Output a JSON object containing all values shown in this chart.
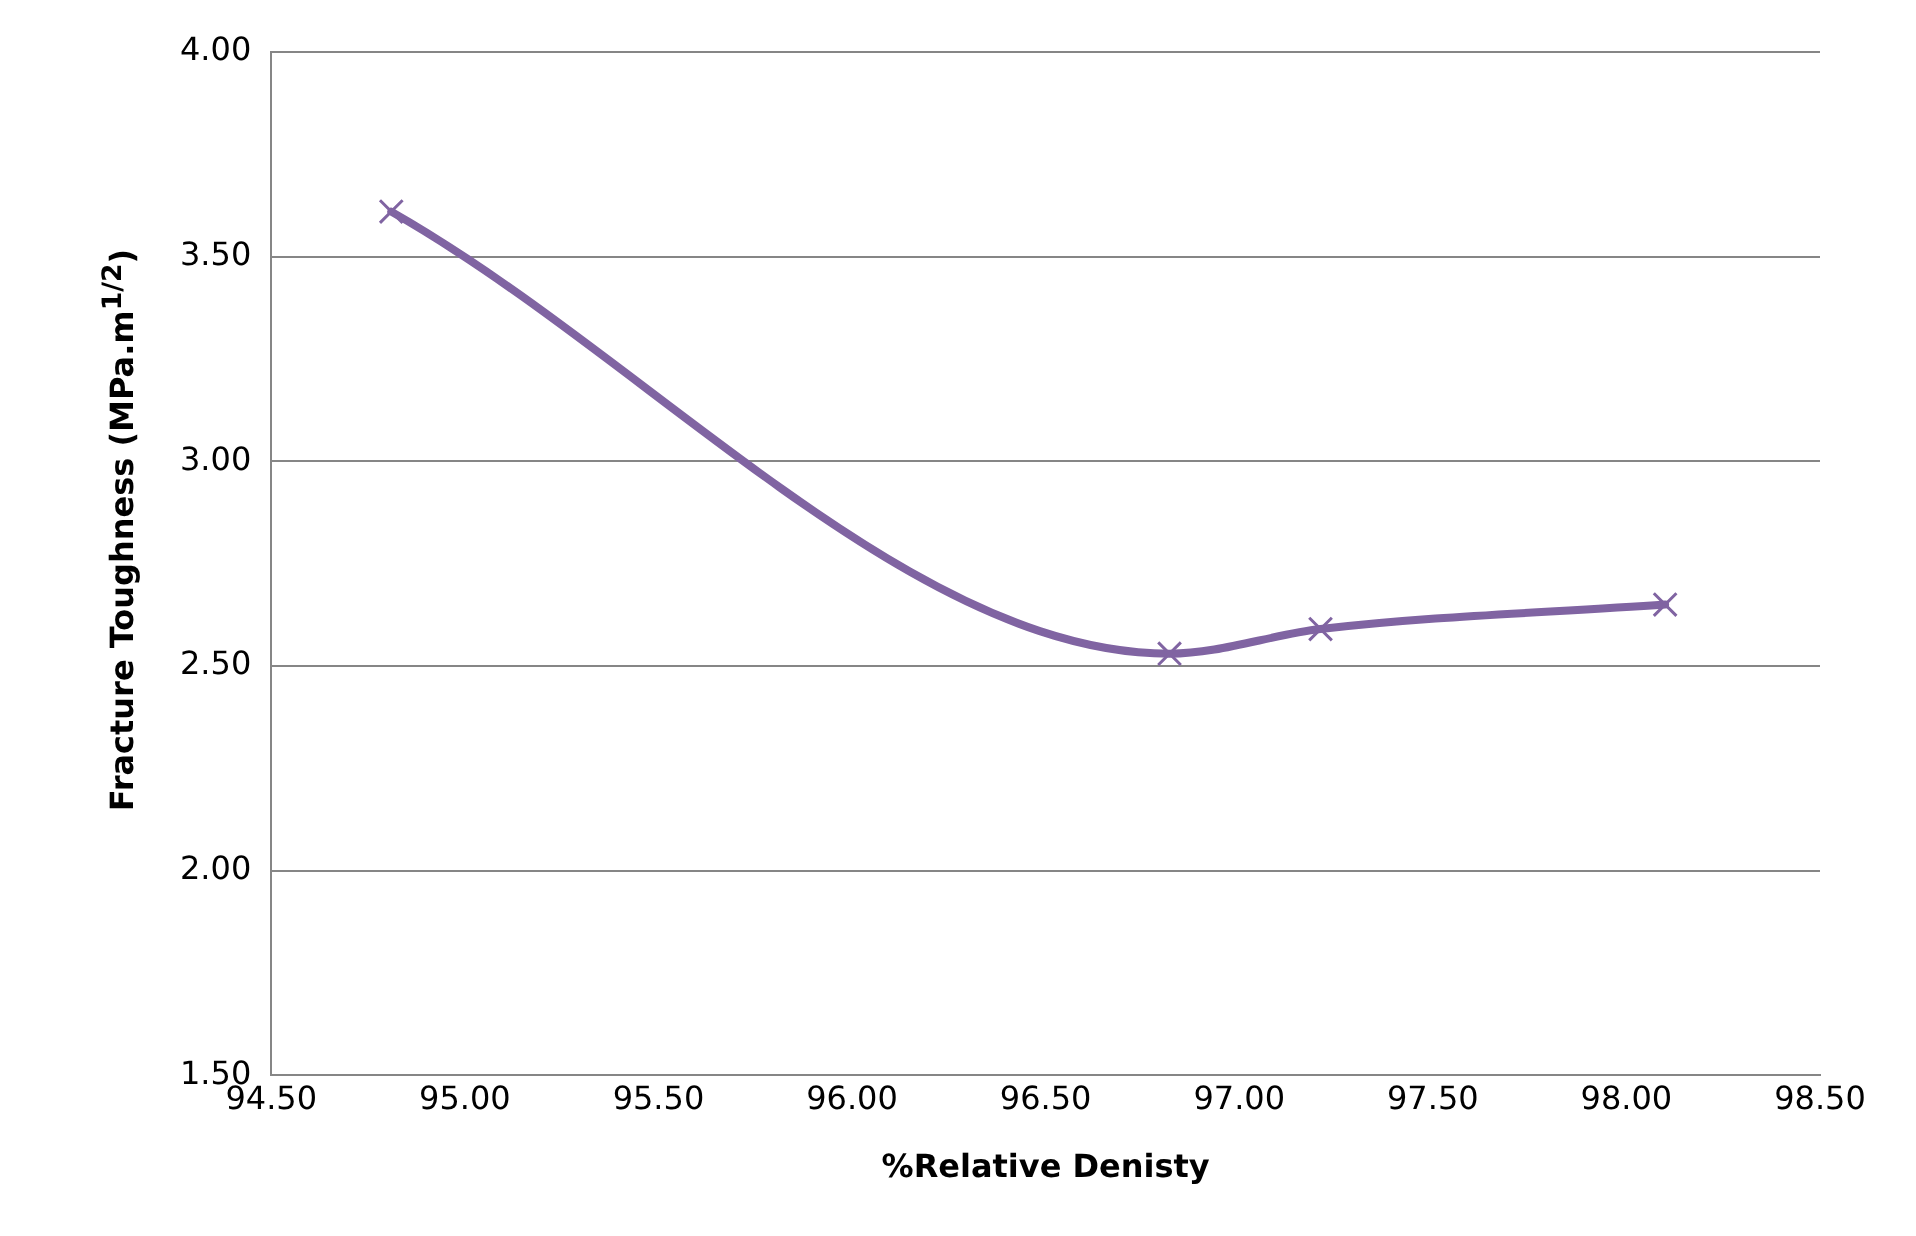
{
  "chart_data": {
    "type": "line",
    "xlabel": "%Relative Denisty",
    "ylabel": "Fracture Toughness (MPa.m$^{1/2}$)",
    "x": [
      94.81,
      96.82,
      97.21,
      98.1
    ],
    "series": [
      {
        "color": "#8064a2",
        "values": [
          3.61,
          2.53,
          2.59,
          2.65
        ]
      }
    ],
    "xlim": [
      94.5,
      98.5
    ],
    "xticks": [
      {
        "value": 94.5,
        "label": "94.50"
      },
      {
        "value": 95,
        "label": "95.00"
      },
      {
        "value": 95.5,
        "label": "95.50"
      },
      {
        "value": 96,
        "label": "96.00"
      },
      {
        "value": 96.5,
        "label": "96.50"
      },
      {
        "value": 97,
        "label": "97.00"
      },
      {
        "value": 97.5,
        "label": "97.50"
      },
      {
        "value": 98,
        "label": "98.00"
      },
      {
        "value": 98.5,
        "label": "98.50"
      }
    ],
    "ylim": [
      1.5,
      4
    ],
    "yticks": [
      {
        "value": 1.5,
        "label": "1.50"
      },
      {
        "value": 2,
        "label": "2.00"
      },
      {
        "value": 2.5,
        "label": "2.50"
      },
      {
        "value": 3,
        "label": "3.00"
      },
      {
        "value": 3.5,
        "label": "3.50"
      },
      {
        "value": 4,
        "label": "4.00"
      }
    ],
    "grid": "y",
    "marker": "cross",
    "line_style": "solid",
    "legend": false
  }
}
